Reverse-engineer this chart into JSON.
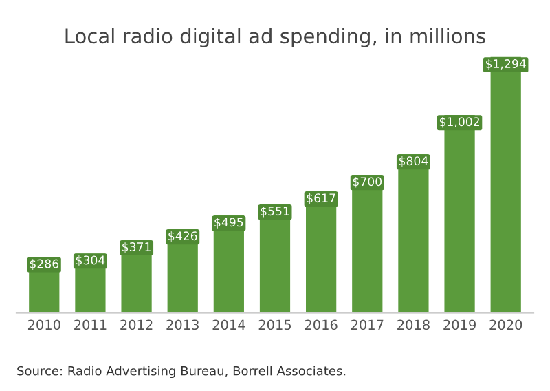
{
  "chart_data": {
    "type": "bar",
    "title": "Local radio digital ad spending, in millions",
    "categories": [
      "2010",
      "2011",
      "2012",
      "2013",
      "2014",
      "2015",
      "2016",
      "2017",
      "2018",
      "2019",
      "2020"
    ],
    "values": [
      286,
      304,
      371,
      426,
      495,
      551,
      617,
      700,
      804,
      1002,
      1294
    ],
    "value_labels": [
      "$286",
      "$304",
      "$371",
      "$426",
      "$495",
      "$551",
      "$617",
      "$700",
      "$804",
      "$1,002",
      "$1,294"
    ],
    "color": "#5b9b3c",
    "tick_labels": "x",
    "annotations": [
      "Source: Radio Advertising Bureau, Borrell Associates."
    ]
  }
}
